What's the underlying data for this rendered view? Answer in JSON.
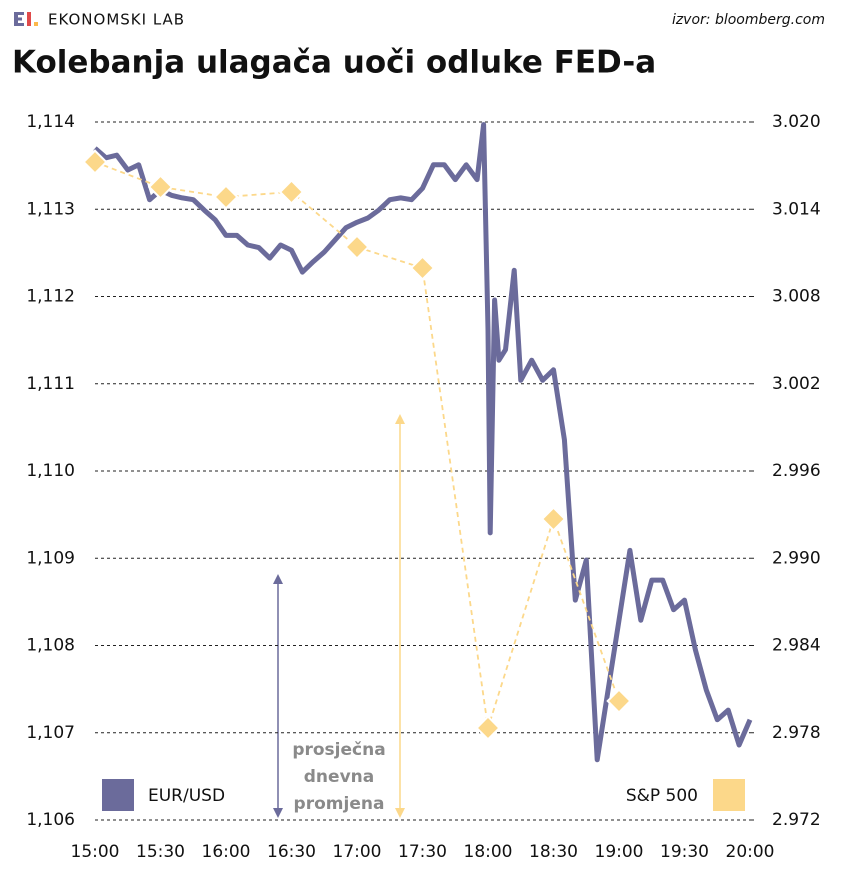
{
  "brand": "EKONOMSKI LAB",
  "source": "izvor: bloomberg.com",
  "chart_data": {
    "type": "line",
    "title": "Kolebanja ulagača uoči odluke FED-a",
    "annotation": [
      "prosječna",
      "dnevna",
      "promjena"
    ],
    "xlim": [
      "15:00",
      "20:00"
    ],
    "xticks": [
      "15:00",
      "15:30",
      "16:00",
      "16:30",
      "17:00",
      "17:30",
      "18:00",
      "18:30",
      "19:00",
      "19:30",
      "20:00"
    ],
    "ylim": [
      1.106,
      1.114
    ],
    "yticks": [
      {
        "value": 1.106,
        "label": "1,106"
      },
      {
        "value": 1.107,
        "label": "1,107"
      },
      {
        "value": 1.108,
        "label": "1,108"
      },
      {
        "value": 1.109,
        "label": "1,109"
      },
      {
        "value": 1.11,
        "label": "1,110"
      },
      {
        "value": 1.111,
        "label": "1,111"
      },
      {
        "value": 1.112,
        "label": "1,112"
      },
      {
        "value": 1.113,
        "label": "1,113"
      },
      {
        "value": 1.114,
        "label": "1,114"
      }
    ],
    "y2lim": [
      2.972,
      3.02
    ],
    "y2ticks": [
      {
        "value": 2.972,
        "label": "2.972"
      },
      {
        "value": 2.978,
        "label": "2.978"
      },
      {
        "value": 2.984,
        "label": "2.984"
      },
      {
        "value": 2.99,
        "label": "2.990"
      },
      {
        "value": 2.996,
        "label": "2.996"
      },
      {
        "value": 3.002,
        "label": "3.002"
      },
      {
        "value": 3.008,
        "label": "3.008"
      },
      {
        "value": 3.014,
        "label": "3.014"
      },
      {
        "value": 3.02,
        "label": "3.020"
      }
    ],
    "grid": true,
    "series": [
      {
        "name": "EUR/USD",
        "color": "#6b6b9b",
        "x": [
          "15:00",
          "15:05",
          "15:10",
          "15:15",
          "15:20",
          "15:25",
          "15:30",
          "15:35",
          "15:40",
          "15:45",
          "15:50",
          "15:55",
          "16:00",
          "16:05",
          "16:10",
          "16:15",
          "16:20",
          "16:25",
          "16:30",
          "16:35",
          "16:40",
          "16:45",
          "16:50",
          "16:55",
          "17:00",
          "17:05",
          "17:10",
          "17:15",
          "17:20",
          "17:25",
          "17:30",
          "17:35",
          "17:40",
          "17:45",
          "17:50",
          "17:55",
          "17:58",
          "18:00",
          "18:01",
          "18:03",
          "18:05",
          "18:08",
          "18:12",
          "18:15",
          "18:20",
          "18:25",
          "18:30",
          "18:35",
          "18:40",
          "18:45",
          "18:50",
          "18:55",
          "19:00",
          "19:05",
          "19:10",
          "19:15",
          "19:20",
          "19:25",
          "19:30",
          "19:35",
          "19:40",
          "19:45",
          "19:50",
          "19:55",
          "20:00"
        ],
        "values": [
          1.1137,
          1.11359,
          1.11362,
          1.11345,
          1.11351,
          1.11311,
          1.11322,
          1.11316,
          1.11313,
          1.11311,
          1.11299,
          1.11288,
          1.1127,
          1.1127,
          1.11259,
          1.11256,
          1.11244,
          1.11259,
          1.11253,
          1.11228,
          1.1124,
          1.11251,
          1.11265,
          1.11279,
          1.11285,
          1.1129,
          1.11299,
          1.11311,
          1.11313,
          1.11311,
          1.11324,
          1.11351,
          1.11351,
          1.11334,
          1.11351,
          1.11334,
          1.11397,
          1.11162,
          1.10929,
          1.11196,
          1.11127,
          1.11139,
          1.1123,
          1.11104,
          1.11127,
          1.11104,
          1.11116,
          1.11036,
          1.10852,
          1.10898,
          1.10669,
          1.10749,
          1.10829,
          1.10909,
          1.10829,
          1.10875,
          1.10875,
          1.10841,
          1.10852,
          1.10795,
          1.10749,
          1.10715,
          1.10726,
          1.10686,
          1.10715
        ]
      },
      {
        "name": "S&P 500",
        "color": "#fcd88a",
        "axis": "y2",
        "x": [
          "15:00",
          "15:30",
          "16:00",
          "16:30",
          "17:00",
          "17:30",
          "18:00",
          "18:30",
          "19:00"
        ],
        "values": [
          3.01725,
          3.01553,
          3.01484,
          3.01519,
          3.0114,
          3.00996,
          2.97833,
          2.9927,
          2.98018
        ]
      }
    ]
  }
}
